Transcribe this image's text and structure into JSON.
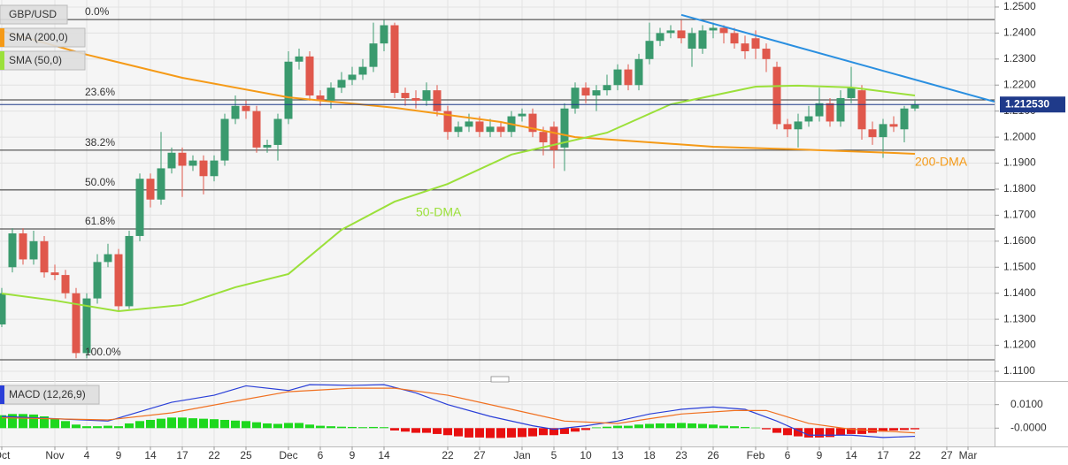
{
  "chart_data": [
    {
      "type": "candlestick",
      "symbol": "GBP/USD",
      "up_color": "#3a9a6e",
      "down_color": "#e0584c",
      "categories": [
        "Oct",
        null,
        null,
        null,
        null,
        "Nov",
        null,
        null,
        "4",
        null,
        null,
        "9",
        null,
        null,
        "14",
        null,
        null,
        "17",
        null,
        null,
        "22",
        null,
        null,
        "25",
        null,
        null,
        null,
        "Dec",
        null,
        null,
        "6",
        null,
        null,
        "9",
        null,
        null,
        "14",
        null,
        null,
        null,
        null,
        null,
        "22",
        null,
        null,
        "27",
        null,
        null,
        null,
        "Jan",
        null,
        null,
        "5",
        null,
        null,
        "10",
        null,
        null,
        "13",
        null,
        null,
        "18",
        null,
        null,
        "23",
        null,
        null,
        "26",
        null,
        null,
        null,
        "Feb",
        null,
        null,
        "6",
        null,
        null,
        "9",
        null,
        null,
        "14",
        null,
        null,
        "17",
        null,
        null,
        "22",
        null,
        null,
        "27",
        null,
        "Mar"
      ],
      "candles": [
        [
          1.128,
          1.142,
          1.127,
          1.14
        ],
        [
          1.15,
          1.165,
          1.148,
          1.163
        ],
        [
          1.163,
          1.165,
          1.151,
          1.153
        ],
        [
          1.153,
          1.164,
          1.151,
          1.16
        ],
        [
          1.16,
          1.162,
          1.146,
          1.148
        ],
        [
          1.148,
          1.151,
          1.145,
          1.147
        ],
        [
          1.147,
          1.149,
          1.138,
          1.14
        ],
        [
          1.14,
          1.142,
          1.115,
          1.117
        ],
        [
          1.117,
          1.14,
          1.115,
          1.138
        ],
        [
          1.138,
          1.155,
          1.136,
          1.152
        ],
        [
          1.152,
          1.159,
          1.15,
          1.155
        ],
        [
          1.155,
          1.157,
          1.133,
          1.135
        ],
        [
          1.135,
          1.164,
          1.134,
          1.162
        ],
        [
          1.162,
          1.186,
          1.16,
          1.184
        ],
        [
          1.184,
          1.186,
          1.173,
          1.176
        ],
        [
          1.176,
          1.202,
          1.174,
          1.188
        ],
        [
          1.188,
          1.196,
          1.186,
          1.194
        ],
        [
          1.194,
          1.196,
          1.177,
          1.189
        ],
        [
          1.189,
          1.193,
          1.187,
          1.191
        ],
        [
          1.191,
          1.193,
          1.178,
          1.185
        ],
        [
          1.185,
          1.193,
          1.183,
          1.191
        ],
        [
          1.191,
          1.209,
          1.189,
          1.207
        ],
        [
          1.207,
          1.216,
          1.205,
          1.212
        ],
        [
          1.212,
          1.214,
          1.207,
          1.21
        ],
        [
          1.21,
          1.212,
          1.194,
          1.196
        ],
        [
          1.196,
          1.199,
          1.194,
          1.197
        ],
        [
          1.197,
          1.209,
          1.191,
          1.207
        ],
        [
          1.207,
          1.233,
          1.205,
          1.229
        ],
        [
          1.229,
          1.234,
          1.226,
          1.231
        ],
        [
          1.231,
          1.233,
          1.214,
          1.216
        ],
        [
          1.216,
          1.218,
          1.212,
          1.214
        ],
        [
          1.214,
          1.221,
          1.211,
          1.219
        ],
        [
          1.219,
          1.225,
          1.217,
          1.222
        ],
        [
          1.222,
          1.227,
          1.22,
          1.224
        ],
        [
          1.224,
          1.23,
          1.222,
          1.227
        ],
        [
          1.227,
          1.244,
          1.225,
          1.236
        ],
        [
          1.236,
          1.245,
          1.233,
          1.243
        ],
        [
          1.243,
          1.244,
          1.215,
          1.217
        ],
        [
          1.217,
          1.219,
          1.212,
          1.215
        ],
        [
          1.215,
          1.218,
          1.211,
          1.214
        ],
        [
          1.214,
          1.221,
          1.212,
          1.218
        ],
        [
          1.218,
          1.22,
          1.208,
          1.21
        ],
        [
          1.21,
          1.212,
          1.199,
          1.202
        ],
        [
          1.202,
          1.206,
          1.2,
          1.204
        ],
        [
          1.204,
          1.209,
          1.202,
          1.206
        ],
        [
          1.206,
          1.208,
          1.2,
          1.202
        ],
        [
          1.202,
          1.207,
          1.2,
          1.204
        ],
        [
          1.204,
          1.206,
          1.2,
          1.202
        ],
        [
          1.202,
          1.21,
          1.2,
          1.208
        ],
        [
          1.208,
          1.211,
          1.206,
          1.209
        ],
        [
          1.209,
          1.211,
          1.2,
          1.202
        ],
        [
          1.202,
          1.204,
          1.193,
          1.198
        ],
        [
          1.204,
          1.206,
          1.188,
          1.195
        ],
        [
          1.196,
          1.213,
          1.187,
          1.211
        ],
        [
          1.211,
          1.221,
          1.209,
          1.219
        ],
        [
          1.219,
          1.221,
          1.213,
          1.216
        ],
        [
          1.216,
          1.22,
          1.21,
          1.218
        ],
        [
          1.218,
          1.224,
          1.216,
          1.22
        ],
        [
          1.22,
          1.228,
          1.218,
          1.226
        ],
        [
          1.226,
          1.228,
          1.218,
          1.22
        ],
        [
          1.22,
          1.232,
          1.218,
          1.23
        ],
        [
          1.23,
          1.244,
          1.228,
          1.237
        ],
        [
          1.237,
          1.242,
          1.235,
          1.24
        ],
        [
          1.24,
          1.243,
          1.238,
          1.241
        ],
        [
          1.241,
          1.245,
          1.236,
          1.238
        ],
        [
          1.234,
          1.242,
          1.227,
          1.24
        ],
        [
          1.234,
          1.243,
          1.232,
          1.241
        ],
        [
          1.241,
          1.244,
          1.238,
          1.242
        ],
        [
          1.242,
          1.243,
          1.236,
          1.24
        ],
        [
          1.24,
          1.242,
          1.234,
          1.236
        ],
        [
          1.236,
          1.239,
          1.23,
          1.233
        ],
        [
          1.238,
          1.241,
          1.23,
          1.234
        ],
        [
          1.234,
          1.236,
          1.225,
          1.23
        ],
        [
          1.227,
          1.229,
          1.203,
          1.205
        ],
        [
          1.205,
          1.207,
          1.2,
          1.203
        ],
        [
          1.203,
          1.209,
          1.196,
          1.206
        ],
        [
          1.206,
          1.212,
          1.204,
          1.208
        ],
        [
          1.208,
          1.219,
          1.206,
          1.213
        ],
        [
          1.213,
          1.215,
          1.204,
          1.206
        ],
        [
          1.206,
          1.218,
          1.204,
          1.215
        ],
        [
          1.215,
          1.227,
          1.213,
          1.219
        ],
        [
          1.218,
          1.22,
          1.199,
          1.203
        ],
        [
          1.203,
          1.206,
          1.197,
          1.2
        ],
        [
          1.2,
          1.207,
          1.192,
          1.205
        ],
        [
          1.205,
          1.208,
          1.202,
          1.204
        ],
        [
          1.203,
          1.212,
          1.198,
          1.211
        ],
        [
          1.211,
          1.214,
          1.21,
          1.2125
        ]
      ],
      "ylim": [
        1.1066,
        1.2527
      ],
      "yticks": [
        {
          "value": 1.11,
          "label": "1.1100"
        },
        {
          "value": 1.12,
          "label": "1.1200"
        },
        {
          "value": 1.13,
          "label": "1.1300"
        },
        {
          "value": 1.14,
          "label": "1.1400"
        },
        {
          "value": 1.15,
          "label": "1.1500"
        },
        {
          "value": 1.16,
          "label": "1.1600"
        },
        {
          "value": 1.17,
          "label": "1.1700"
        },
        {
          "value": 1.18,
          "label": "1.1800"
        },
        {
          "value": 1.19,
          "label": "1.1900"
        },
        {
          "value": 1.2,
          "label": "1.2000"
        },
        {
          "value": 1.21,
          "label": "1.2100"
        },
        {
          "value": 1.22,
          "label": "1.2200"
        },
        {
          "value": 1.23,
          "label": "1.2300"
        },
        {
          "value": 1.24,
          "label": "1.2400"
        },
        {
          "value": 1.25,
          "label": "1.2500"
        }
      ],
      "last_price": {
        "value": 1.21253,
        "label": "1.212530"
      },
      "sma": [
        {
          "name": "SMA (200,0)",
          "color": "#f59a17",
          "x": [
            0,
            8,
            17,
            27,
            37,
            47,
            54,
            67,
            75,
            86
          ],
          "values": [
            1.2408,
            1.2317,
            1.2228,
            1.2153,
            1.2113,
            1.2058,
            1.2,
            1.1963,
            1.1953,
            1.1936
          ]
        },
        {
          "name": "SMA (50,0)",
          "color": "#9be03a",
          "x": [
            0,
            5,
            11,
            17,
            22,
            27,
            32,
            37,
            42,
            48,
            57,
            63,
            71,
            75,
            80,
            86
          ],
          "values": [
            1.1399,
            1.1372,
            1.1331,
            1.1355,
            1.1423,
            1.1474,
            1.1644,
            1.1752,
            1.182,
            1.1933,
            1.2017,
            1.2126,
            1.2194,
            1.2198,
            1.2191,
            1.216
          ]
        }
      ],
      "annotations": [
        {
          "text": "200-DMA",
          "color": "#f59a17"
        },
        {
          "text": "50-DMA",
          "color": "#9be03a"
        }
      ],
      "trendline": {
        "color": "#2a8fe0",
        "x": [
          64,
          93.5
        ],
        "values": [
          1.247,
          1.2136
        ]
      },
      "fib_levels": [
        {
          "label": "0.0%",
          "value": 1.2452
        },
        {
          "label": "23.6%",
          "value": 1.2143
        },
        {
          "label": "38.2%",
          "value": 1.195
        },
        {
          "label": "50.0%",
          "value": 1.1797
        },
        {
          "label": "61.8%",
          "value": 1.1647
        },
        {
          "label": "100.0%",
          "value": 1.1144
        }
      ]
    },
    {
      "type": "macd",
      "label": "MACD (12,26,9)",
      "up_color": "#1ed81e",
      "down_color": "#e81010",
      "histogram": [
        0.0055,
        0.006,
        0.006,
        0.0058,
        0.005,
        0.004,
        0.003,
        0.0015,
        0.0008,
        0.0008,
        0.001,
        0.0008,
        0.002,
        0.003,
        0.0035,
        0.004,
        0.0045,
        0.0045,
        0.0042,
        0.004,
        0.0038,
        0.0035,
        0.0032,
        0.003,
        0.0025,
        0.002,
        0.0018,
        0.0022,
        0.0022,
        0.0015,
        0.001,
        0.0008,
        0.0006,
        0.0005,
        0.0004,
        0.0005,
        0.0004,
        -0.001,
        -0.0015,
        -0.002,
        -0.002,
        -0.0025,
        -0.003,
        -0.0035,
        -0.004,
        -0.004,
        -0.0042,
        -0.0042,
        -0.004,
        -0.0038,
        -0.0035,
        -0.003,
        -0.003,
        -0.0025,
        -0.0015,
        -0.0008,
        0.0003,
        0.0006,
        0.001,
        0.001,
        0.0015,
        0.0018,
        0.002,
        0.002,
        0.0022,
        0.002,
        0.0018,
        0.0015,
        0.001,
        0.0008,
        0.0005,
        0.0002,
        -0.0005,
        -0.002,
        -0.003,
        -0.0035,
        -0.004,
        -0.004,
        -0.0038,
        -0.003,
        -0.0025,
        -0.0025,
        -0.002,
        -0.0015,
        -0.001,
        -0.0008,
        -0.0005
      ],
      "lines": [
        {
          "color": "#2a3fd8",
          "x": [
            0,
            5,
            10,
            13,
            16,
            20,
            23,
            27,
            29,
            33,
            36,
            39,
            42,
            46,
            50,
            52,
            55,
            58,
            61,
            64,
            67,
            70,
            73,
            76,
            80,
            83,
            86
          ],
          "values": [
            0.005,
            0.004,
            0.003,
            0.007,
            0.011,
            0.014,
            0.018,
            0.016,
            0.0185,
            0.0182,
            0.0185,
            0.015,
            0.01,
            0.005,
            0.001,
            -0.0005,
            0.001,
            0.003,
            0.006,
            0.008,
            0.009,
            0.008,
            0.003,
            -0.003,
            -0.003,
            -0.004,
            -0.0035
          ]
        },
        {
          "color": "#f07020",
          "x": [
            0,
            10,
            16,
            22,
            27,
            33,
            37,
            42,
            48,
            53,
            58,
            64,
            69,
            72,
            76,
            80,
            86
          ],
          "values": [
            0.0044,
            0.0035,
            0.0065,
            0.0115,
            0.0155,
            0.017,
            0.017,
            0.014,
            0.008,
            0.003,
            0.002,
            0.006,
            0.0075,
            0.0075,
            0.002,
            -0.0005,
            -0.002
          ]
        }
      ],
      "ylim": [
        -0.0078,
        0.0193
      ],
      "yticks": [
        {
          "value": 0.01,
          "label": "0.0100"
        },
        {
          "value": 0,
          "label": "-0.0000"
        }
      ]
    }
  ]
}
